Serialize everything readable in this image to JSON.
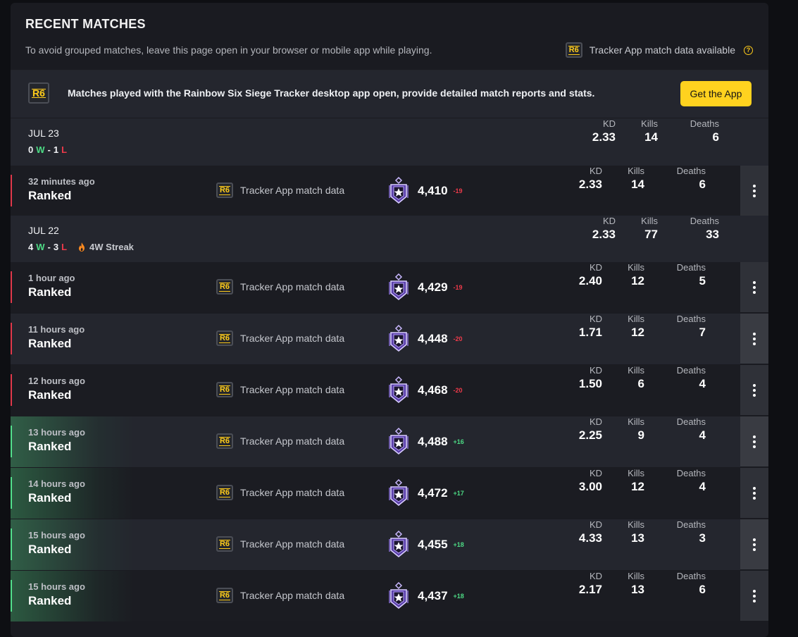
{
  "header": {
    "title": "RECENT MATCHES",
    "subtitle": "To avoid grouped matches, leave this page open in your browser or mobile app while playing.",
    "legend_label": "Tracker App match data available",
    "help_glyph": "?"
  },
  "promo": {
    "text": "Matches played with the Rainbow Six Siege Tracker desktop app open, provide detailed match reports and stats.",
    "button": "Get the App"
  },
  "r6_badge": "R6",
  "stat_labels": {
    "kd": "KD",
    "kills": "Kills",
    "deaths": "Deaths"
  },
  "days": [
    {
      "date": "JUL 23",
      "wins": "0",
      "w": "W",
      "dash": "-",
      "losses": "1",
      "l": "L",
      "streak": "",
      "kd": "2.33",
      "kills": "14",
      "deaths": "6"
    },
    {
      "date": "JUL 22",
      "wins": "4",
      "w": "W",
      "dash": "-",
      "losses": "3",
      "l": "L",
      "streak": "4W Streak",
      "kd": "2.33",
      "kills": "77",
      "deaths": "33"
    }
  ],
  "matches": [
    {
      "time": "32 minutes ago",
      "mode": "Ranked",
      "tracker": "Tracker App match data",
      "rp": "4,410",
      "delta": "-19",
      "kd": "2.33",
      "kills": "14",
      "deaths": "6",
      "result": "loss"
    },
    {
      "time": "1 hour ago",
      "mode": "Ranked",
      "tracker": "Tracker App match data",
      "rp": "4,429",
      "delta": "-19",
      "kd": "2.40",
      "kills": "12",
      "deaths": "5",
      "result": "loss"
    },
    {
      "time": "11 hours ago",
      "mode": "Ranked",
      "tracker": "Tracker App match data",
      "rp": "4,448",
      "delta": "-20",
      "kd": "1.71",
      "kills": "12",
      "deaths": "7",
      "result": "loss"
    },
    {
      "time": "12 hours ago",
      "mode": "Ranked",
      "tracker": "Tracker App match data",
      "rp": "4,468",
      "delta": "-20",
      "kd": "1.50",
      "kills": "6",
      "deaths": "4",
      "result": "loss"
    },
    {
      "time": "13 hours ago",
      "mode": "Ranked",
      "tracker": "Tracker App match data",
      "rp": "4,488",
      "delta": "+16",
      "kd": "2.25",
      "kills": "9",
      "deaths": "4",
      "result": "win"
    },
    {
      "time": "14 hours ago",
      "mode": "Ranked",
      "tracker": "Tracker App match data",
      "rp": "4,472",
      "delta": "+17",
      "kd": "3.00",
      "kills": "12",
      "deaths": "4",
      "result": "win"
    },
    {
      "time": "15 hours ago",
      "mode": "Ranked",
      "tracker": "Tracker App match data",
      "rp": "4,455",
      "delta": "+18",
      "kd": "4.33",
      "kills": "13",
      "deaths": "3",
      "result": "win"
    },
    {
      "time": "15 hours ago",
      "mode": "Ranked",
      "tracker": "Tracker App match data",
      "rp": "4,437",
      "delta": "+18",
      "kd": "2.17",
      "kills": "13",
      "deaths": "6",
      "result": "win"
    }
  ],
  "colors": {
    "accent": "#ffd21f",
    "win": "#4ddb85",
    "loss": "#ee3a4a",
    "panel": "#1a1b21"
  },
  "icons": {
    "r6": "r6-logo-icon",
    "rank": "champion-rank-icon",
    "menu": "more-vertical-icon",
    "help": "help-icon",
    "streak": "flame-icon"
  }
}
